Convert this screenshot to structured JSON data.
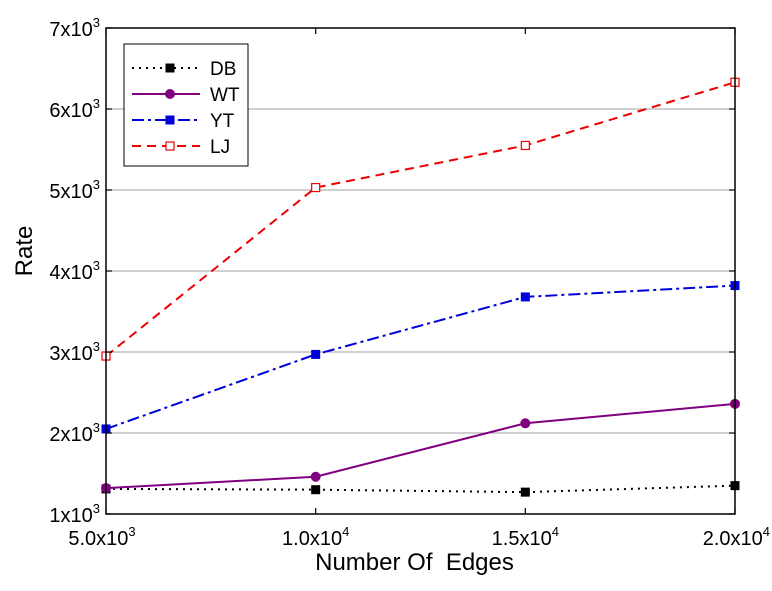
{
  "chart_data": {
    "type": "line",
    "title": "",
    "xlabel": "Number Of  Edges",
    "ylabel": "Rate",
    "x": [
      5000,
      10000,
      15000,
      20000
    ],
    "xlim": [
      5000,
      20000
    ],
    "ylim": [
      1000,
      7000
    ],
    "grid": "horizontal",
    "legend_position": "top-left",
    "x_ticks": [
      {
        "value": 5000,
        "mant": "5.0x10",
        "exp": "3"
      },
      {
        "value": 10000,
        "mant": "1.0x10",
        "exp": "4"
      },
      {
        "value": 15000,
        "mant": "1.5x10",
        "exp": "4"
      },
      {
        "value": 20000,
        "mant": "2.0x10",
        "exp": "4"
      }
    ],
    "y_ticks": [
      {
        "value": 1000,
        "mant": "1x10",
        "exp": "3"
      },
      {
        "value": 2000,
        "mant": "2x10",
        "exp": "3"
      },
      {
        "value": 3000,
        "mant": "3x10",
        "exp": "3"
      },
      {
        "value": 4000,
        "mant": "4x10",
        "exp": "3"
      },
      {
        "value": 5000,
        "mant": "5x10",
        "exp": "3"
      },
      {
        "value": 6000,
        "mant": "6x10",
        "exp": "3"
      },
      {
        "value": 7000,
        "mant": "7x10",
        "exp": "3"
      }
    ],
    "series": [
      {
        "name": "DB",
        "values": [
          1310,
          1300,
          1270,
          1350
        ],
        "color": "#000000",
        "dash": "2,5",
        "marker": "square-filled"
      },
      {
        "name": "WT",
        "values": [
          1320,
          1460,
          2120,
          2360
        ],
        "color": "#800080",
        "dash": "",
        "marker": "circle-filled"
      },
      {
        "name": "YT",
        "values": [
          2050,
          2970,
          3680,
          3820
        ],
        "color": "#0000dd",
        "dash": "12,4,3,4",
        "marker": "square-filled"
      },
      {
        "name": "LJ",
        "values": [
          2950,
          5030,
          5550,
          6330
        ],
        "color": "#ee0000",
        "dash": "9,6",
        "marker": "square-open"
      }
    ]
  }
}
